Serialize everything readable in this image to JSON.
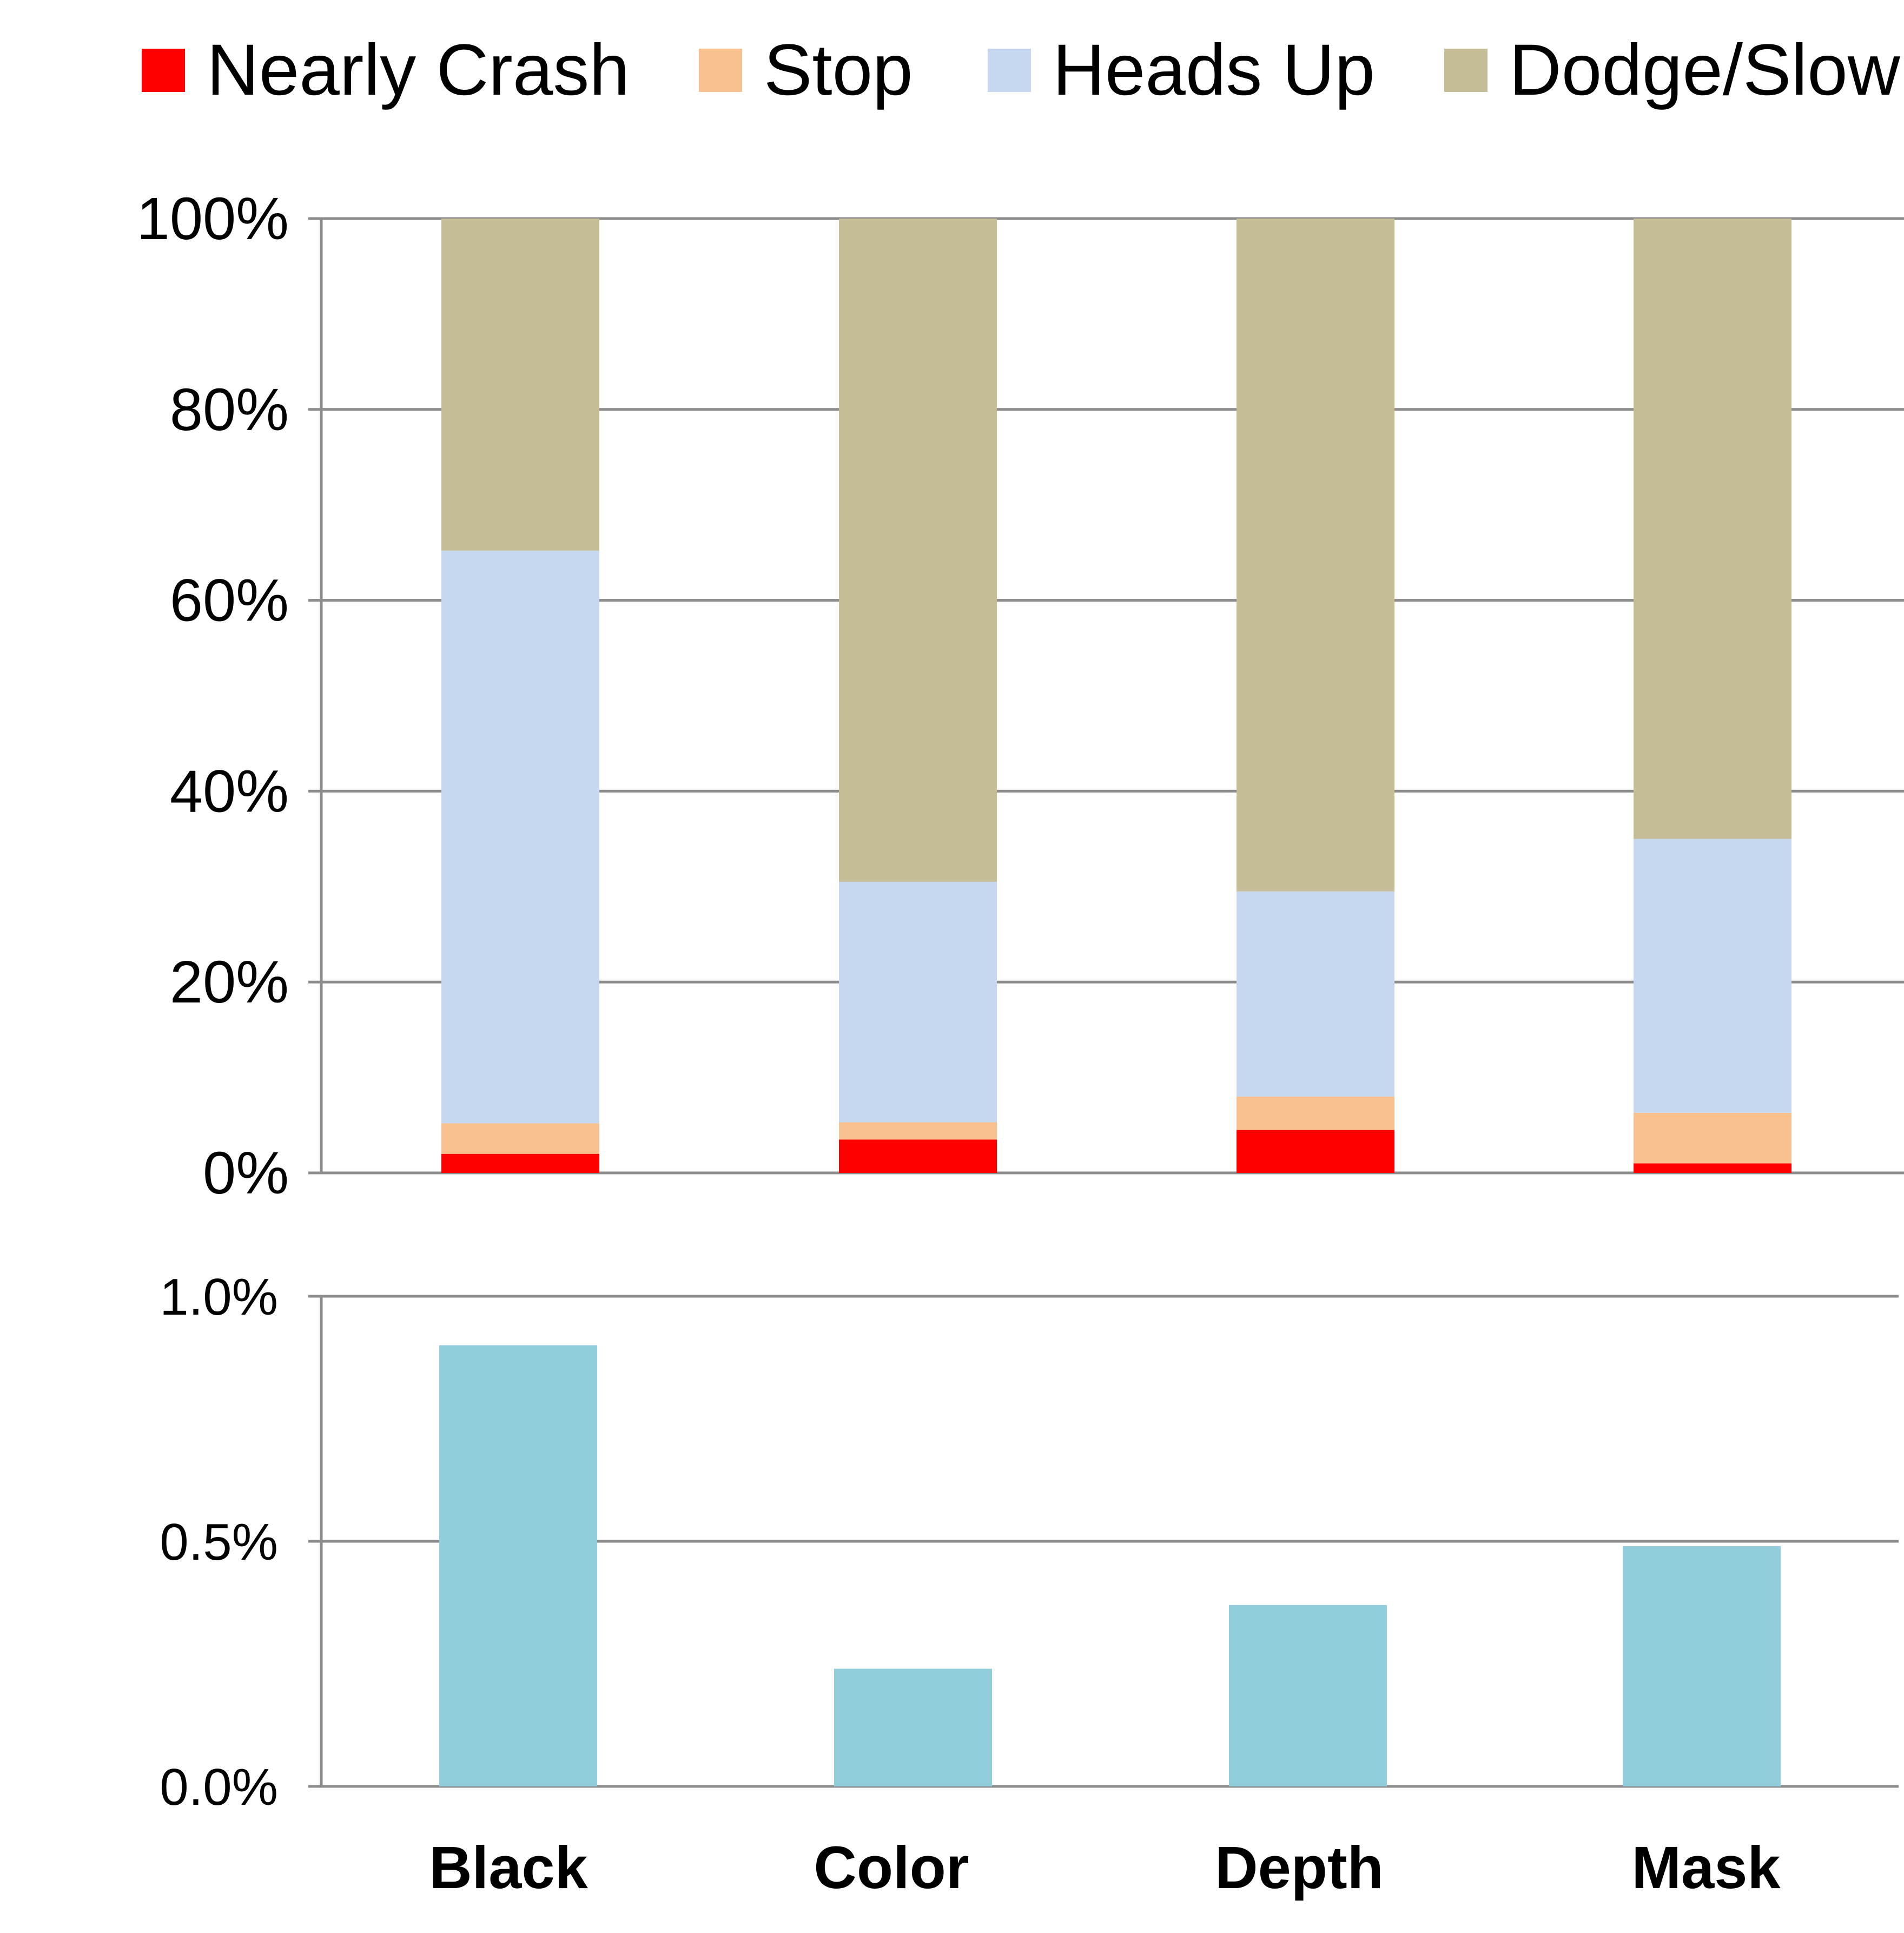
{
  "chart_data": [
    {
      "type": "bar",
      "stacked": true,
      "categories": [
        "Black",
        "Color",
        "Depth",
        "Mask"
      ],
      "series": [
        {
          "name": "Nearly Crash",
          "color": "#ff0000",
          "values": [
            2,
            3.5,
            4.5,
            1
          ]
        },
        {
          "name": "Stop",
          "color": "#f9c090",
          "values": [
            3.2,
            1.8,
            3.5,
            5.3
          ]
        },
        {
          "name": "Heads Up",
          "color": "#c6d8f0",
          "values": [
            60,
            25.2,
            21.5,
            28.7
          ]
        },
        {
          "name": "Dodge/Slow",
          "color": "#c4bd97",
          "values": [
            34.8,
            69.5,
            70.5,
            65
          ]
        }
      ],
      "ylim": [
        0,
        100
      ],
      "yticks": [
        "0%",
        "20%",
        "40%",
        "60%",
        "80%",
        "100%"
      ],
      "ytick_values": [
        0,
        20,
        40,
        60,
        80,
        100
      ],
      "grid": true,
      "legend": "top"
    },
    {
      "type": "bar",
      "categories": [
        "Black",
        "Color",
        "Depth",
        "Mask"
      ],
      "series": [
        {
          "color": "#92cddc",
          "values": [
            0.9,
            0.24,
            0.37,
            0.49
          ]
        }
      ],
      "ylim": [
        0,
        1.0
      ],
      "yticks": [
        "0.0%",
        "0.5%",
        "1.0%"
      ],
      "ytick_values": [
        0,
        0.5,
        1.0
      ],
      "grid": true
    }
  ]
}
